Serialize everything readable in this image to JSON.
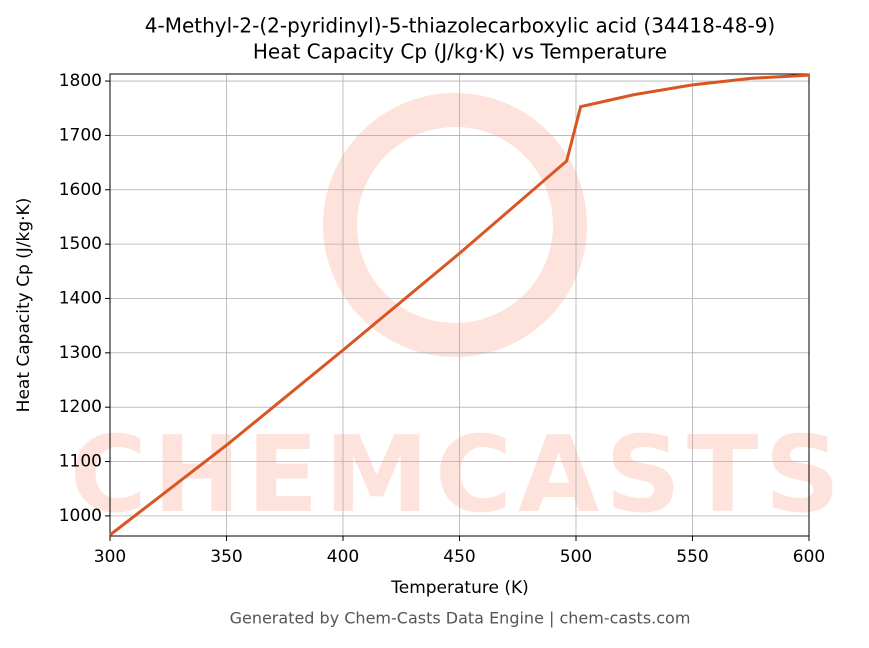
{
  "chart_data": {
    "type": "line",
    "title": "4-Methyl-2-(2-pyridinyl)-5-thiazolecarboxylic acid (34418-48-9)",
    "subtitle": "Heat Capacity Cp (J/kg·K) vs Temperature",
    "x_label": "Temperature (K)",
    "y_label": "Heat Capacity Cp (J/kg·K)",
    "footer": "Generated by Chem-Casts Data Engine | chem-casts.com",
    "watermark": "CHEMCASTS",
    "x": [
      300,
      350,
      400,
      450,
      496,
      502,
      525,
      550,
      575,
      600
    ],
    "series": [
      {
        "name": "Cp",
        "color": "#d95624",
        "values": [
          965,
          1130,
          1305,
          1483,
          1653,
          1753,
          1775,
          1793,
          1805,
          1811
        ]
      }
    ],
    "xlim": [
      300,
      600
    ],
    "xticks": [
      300,
      350,
      400,
      450,
      500,
      550,
      600
    ],
    "ylim": [
      963,
      1813
    ],
    "yticks": [
      1000,
      1100,
      1200,
      1300,
      1400,
      1500,
      1600,
      1700,
      1800
    ],
    "grid": true
  }
}
